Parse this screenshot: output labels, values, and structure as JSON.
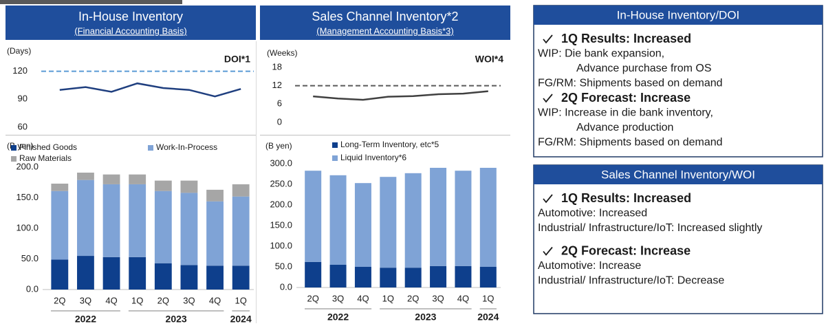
{
  "headers": [
    {
      "title": "In-House Inventory",
      "subtitle": "(Financial Accounting Basis)"
    },
    {
      "title": "Sales Channel Inventory*2",
      "subtitle": "(Management Accounting Basis*3)"
    }
  ],
  "chart_data": [
    {
      "type": "line",
      "y_label": "(Days)",
      "corner_label": "DOI*1",
      "ylim": [
        60,
        130
      ],
      "yticks": [
        60,
        90,
        120
      ],
      "reference": {
        "value": 120,
        "color": "#5b9bd5"
      },
      "series": [
        {
          "color": "#1f3f7f",
          "values": [
            100,
            103,
            98,
            107,
            102,
            100,
            93,
            101
          ]
        }
      ]
    },
    {
      "type": "stacked_bar",
      "y_label": "(B yen)",
      "categories": [
        "2Q",
        "3Q",
        "4Q",
        "1Q",
        "2Q",
        "3Q",
        "4Q",
        "1Q"
      ],
      "category_groups": [
        "2022",
        "2022",
        "2022",
        "2023",
        "2023",
        "2023",
        "2023",
        "2024"
      ],
      "ylim": [
        0,
        200
      ],
      "yticks": [
        {
          "value": 0,
          "label": "0.0"
        },
        {
          "value": 50,
          "label": "50.0"
        },
        {
          "value": 100,
          "label": "100.0"
        },
        {
          "value": 150,
          "label": "150.0"
        },
        {
          "value": 200,
          "label": "200.0"
        }
      ],
      "series": [
        {
          "name": "Finished Goods",
          "color": "#0e3f8c",
          "values": [
            49,
            55,
            53,
            53,
            43,
            40,
            39,
            39
          ]
        },
        {
          "name": "Work-In-Process",
          "color": "#7fa3d6",
          "values": [
            112,
            124,
            119,
            119,
            118,
            118,
            105,
            113
          ]
        },
        {
          "name": "Raw Materials",
          "color": "#a6a6a6",
          "values": [
            12,
            12,
            16,
            16,
            17,
            20,
            19,
            20
          ]
        }
      ]
    },
    {
      "type": "line",
      "y_label": "(Weeks)",
      "corner_label": "WOI*4",
      "ylim": [
        0,
        20
      ],
      "yticks": [
        0,
        6,
        12,
        18
      ],
      "reference": {
        "value": 12,
        "color": "#595959"
      },
      "series": [
        {
          "color": "#404040",
          "values": [
            8.5,
            7.8,
            7.4,
            8.4,
            8.6,
            9.2,
            9.4,
            10.2
          ]
        }
      ]
    },
    {
      "type": "stacked_bar",
      "y_label": "(B yen)",
      "categories": [
        "2Q",
        "3Q",
        "4Q",
        "1Q",
        "2Q",
        "3Q",
        "4Q",
        "1Q"
      ],
      "category_groups": [
        "2022",
        "2022",
        "2022",
        "2023",
        "2023",
        "2023",
        "2023",
        "2024"
      ],
      "ylim": [
        0,
        300
      ],
      "yticks": [
        {
          "value": 0,
          "label": "0.0"
        },
        {
          "value": 50,
          "label": "50.0"
        },
        {
          "value": 100,
          "label": "100.0"
        },
        {
          "value": 150,
          "label": "150.0"
        },
        {
          "value": 200,
          "label": "200.0"
        },
        {
          "value": 250,
          "label": "250.0"
        },
        {
          "value": 300,
          "label": "300.0"
        }
      ],
      "series": [
        {
          "name": "Long-Term Inventory, etc*5",
          "color": "#0e3f8c",
          "values": [
            62,
            55,
            50,
            48,
            48,
            52,
            52,
            50
          ]
        },
        {
          "name": "Liquid Inventory*6",
          "color": "#7fa3d6",
          "values": [
            221,
            217,
            203,
            220,
            229,
            238,
            231,
            240
          ]
        }
      ]
    }
  ],
  "boxes": [
    {
      "title": "In-House Inventory/DOI",
      "items": [
        {
          "style": "heading",
          "text": "1Q Results: Increased"
        },
        {
          "style": "text",
          "text": "WIP: Die bank expansion,"
        },
        {
          "style": "indent",
          "text": "Advance purchase from OS"
        },
        {
          "style": "text",
          "text": "FG/RM: Shipments based on demand"
        },
        {
          "style": "heading",
          "text": "2Q Forecast: Increase"
        },
        {
          "style": "text",
          "text": "WIP: Increase in die bank inventory,"
        },
        {
          "style": "indent",
          "text": "Advance production"
        },
        {
          "style": "text",
          "text": "FG/RM: Shipments based on demand"
        }
      ]
    },
    {
      "title": "Sales Channel Inventory/WOI",
      "items": [
        {
          "style": "heading",
          "text": "1Q Results: Increased"
        },
        {
          "style": "text",
          "text": "Automotive: Increased"
        },
        {
          "style": "text",
          "text": "Industrial/ Infrastructure/IoT: Increased slightly"
        },
        {
          "style": "heading",
          "text": "2Q Forecast: Increase"
        },
        {
          "style": "text",
          "text": "Automotive: Increase"
        },
        {
          "style": "text",
          "text": "Industrial/ Infrastructure/IoT: Decrease"
        }
      ]
    }
  ]
}
